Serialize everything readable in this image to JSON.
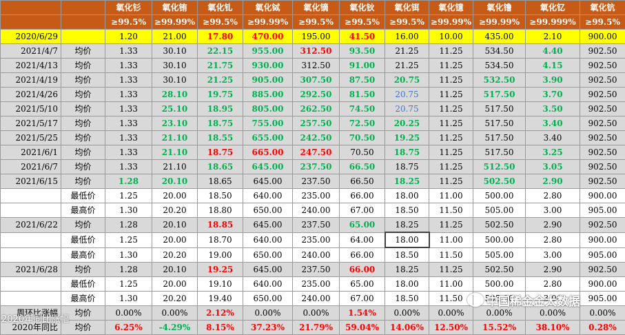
{
  "header": {
    "row1": [
      "",
      "",
      "氧化钐",
      "氧化铕",
      "氧化钆",
      "氧化铽",
      "氧化镝",
      "氧化钬",
      "氧化铒",
      "氧化镱",
      "氧化镥",
      "氧化钇",
      "氧化钪"
    ],
    "row2": [
      "",
      "",
      "≥99.5%",
      "≥99.99%",
      "≥99.5%",
      "≥99.99%",
      "≥99.5%",
      "≥99.5%",
      "≥99.5%",
      "≥99.99%",
      "≥99.99%",
      "≥99.999%",
      "≥99.5%"
    ]
  },
  "colors": {
    "header_bg": "#c65a17",
    "highlight": "#ffff00",
    "grey_row": "#d9d9d9",
    "up": "#ff0000",
    "down": "#00b050"
  },
  "rows": [
    {
      "style": "yellow",
      "cells": [
        {
          "t": "2020/6/29"
        },
        {
          "t": ""
        },
        {
          "t": "1.20"
        },
        {
          "t": "21.00"
        },
        {
          "t": "17.80",
          "c": "r"
        },
        {
          "t": "470.00",
          "c": "r"
        },
        {
          "t": "195.00"
        },
        {
          "t": "41.50",
          "c": "r"
        },
        {
          "t": "16.00"
        },
        {
          "t": "10.00"
        },
        {
          "t": "435.00"
        },
        {
          "t": "2.10"
        },
        {
          "t": "900.00"
        }
      ]
    },
    {
      "style": "grey",
      "cells": [
        {
          "t": "2021/4/7"
        },
        {
          "t": "均价"
        },
        {
          "t": "1.33"
        },
        {
          "t": "30.10"
        },
        {
          "t": "22.15",
          "c": "g"
        },
        {
          "t": "955.00",
          "c": "g"
        },
        {
          "t": "312.50",
          "c": "r"
        },
        {
          "t": "93.50",
          "c": "g"
        },
        {
          "t": "21.25"
        },
        {
          "t": "11.25"
        },
        {
          "t": "534.50"
        },
        {
          "t": "4.40",
          "c": "g"
        },
        {
          "t": "902.50"
        }
      ]
    },
    {
      "style": "grey",
      "cells": [
        {
          "t": "2021/4/13"
        },
        {
          "t": "均价"
        },
        {
          "t": "1.33"
        },
        {
          "t": "30.10"
        },
        {
          "t": "21.75",
          "c": "g"
        },
        {
          "t": "930.00",
          "c": "g"
        },
        {
          "t": "312.50"
        },
        {
          "t": "91.00",
          "c": "g"
        },
        {
          "t": "21.25"
        },
        {
          "t": "11.25"
        },
        {
          "t": "534.50"
        },
        {
          "t": "4.15",
          "c": "g"
        },
        {
          "t": "902.50"
        }
      ]
    },
    {
      "style": "grey",
      "cells": [
        {
          "t": "2021/4/19"
        },
        {
          "t": "均价"
        },
        {
          "t": "1.33"
        },
        {
          "t": "30.10"
        },
        {
          "t": "21.25",
          "c": "g"
        },
        {
          "t": "905.00",
          "c": "g"
        },
        {
          "t": "307.50",
          "c": "g"
        },
        {
          "t": "87.50",
          "c": "g"
        },
        {
          "t": "20.75",
          "c": "g"
        },
        {
          "t": "11.25"
        },
        {
          "t": "532.50",
          "c": "g"
        },
        {
          "t": "3.90",
          "c": "g"
        },
        {
          "t": "902.50"
        }
      ]
    },
    {
      "style": "grey",
      "cells": [
        {
          "t": "2021/4/26"
        },
        {
          "t": "均价"
        },
        {
          "t": "1.33"
        },
        {
          "t": "28.10",
          "c": "g"
        },
        {
          "t": "19.75",
          "c": "g"
        },
        {
          "t": "885.00",
          "c": "g"
        },
        {
          "t": "292.50",
          "c": "g"
        },
        {
          "t": "81.50",
          "c": "g"
        },
        {
          "t": "20.75",
          "c": "b"
        },
        {
          "t": "11.25"
        },
        {
          "t": "517.50",
          "c": "g"
        },
        {
          "t": "3.70",
          "c": "g"
        },
        {
          "t": "902.50"
        }
      ]
    },
    {
      "style": "grey",
      "cells": [
        {
          "t": "2021/5/10"
        },
        {
          "t": "均价"
        },
        {
          "t": "1.33"
        },
        {
          "t": "25.10",
          "c": "g"
        },
        {
          "t": "18.95",
          "c": "g"
        },
        {
          "t": "805.00",
          "c": "g"
        },
        {
          "t": "262.50",
          "c": "g"
        },
        {
          "t": "74.50",
          "c": "g"
        },
        {
          "t": "20.75",
          "c": "b"
        },
        {
          "t": "11.25"
        },
        {
          "t": "517.50"
        },
        {
          "t": "3.50",
          "c": "g"
        },
        {
          "t": "902.50"
        }
      ]
    },
    {
      "style": "grey",
      "cells": [
        {
          "t": "2021/5/17"
        },
        {
          "t": "均价"
        },
        {
          "t": "1.33"
        },
        {
          "t": "23.10",
          "c": "g"
        },
        {
          "t": "18.75",
          "c": "g"
        },
        {
          "t": "755.00",
          "c": "g"
        },
        {
          "t": "257.50",
          "c": "g"
        },
        {
          "t": "72.50",
          "c": "g"
        },
        {
          "t": "20.25",
          "c": "g"
        },
        {
          "t": "11.25"
        },
        {
          "t": "517.50"
        },
        {
          "t": "3.40",
          "c": "g"
        },
        {
          "t": "902.50"
        }
      ]
    },
    {
      "style": "grey",
      "cells": [
        {
          "t": "2021/5/25"
        },
        {
          "t": "均价"
        },
        {
          "t": "1.33"
        },
        {
          "t": "21.10",
          "c": "g"
        },
        {
          "t": "18.55",
          "c": "g"
        },
        {
          "t": "655.00",
          "c": "g"
        },
        {
          "t": "242.50",
          "c": "g"
        },
        {
          "t": "70.50",
          "c": "g"
        },
        {
          "t": "19.25",
          "c": "g"
        },
        {
          "t": "11.25"
        },
        {
          "t": "517.50"
        },
        {
          "t": "3.40"
        },
        {
          "t": "902.50"
        }
      ]
    },
    {
      "style": "grey",
      "cells": [
        {
          "t": "2021/6/1"
        },
        {
          "t": "均价"
        },
        {
          "t": "1.33"
        },
        {
          "t": "21.10",
          "c": "g"
        },
        {
          "t": "18.75",
          "c": "r"
        },
        {
          "t": "665.00",
          "c": "r"
        },
        {
          "t": "247.50",
          "c": "r"
        },
        {
          "t": "70.50"
        },
        {
          "t": "18.75",
          "c": "g"
        },
        {
          "t": "11.25"
        },
        {
          "t": "517.50"
        },
        {
          "t": "3.25",
          "c": "g"
        },
        {
          "t": "902.50"
        }
      ]
    },
    {
      "style": "grey",
      "cells": [
        {
          "t": "2021/6/7"
        },
        {
          "t": "均价"
        },
        {
          "t": "1.33"
        },
        {
          "t": "21.10"
        },
        {
          "t": "18.65",
          "c": "g"
        },
        {
          "t": "645.00",
          "c": "g"
        },
        {
          "t": "237.50",
          "c": "g"
        },
        {
          "t": "66.50",
          "c": "g"
        },
        {
          "t": "18.75"
        },
        {
          "t": "11.25"
        },
        {
          "t": "512.50",
          "c": "g"
        },
        {
          "t": "3.05",
          "c": "g"
        },
        {
          "t": "902.50"
        }
      ]
    },
    {
      "style": "grey",
      "cells": [
        {
          "t": "2021/6/15"
        },
        {
          "t": "均价"
        },
        {
          "t": "1.28",
          "c": "g"
        },
        {
          "t": "20.10",
          "c": "g"
        },
        {
          "t": "18.65"
        },
        {
          "t": "645.00"
        },
        {
          "t": "237.50"
        },
        {
          "t": "66.50"
        },
        {
          "t": "18.25",
          "c": "g"
        },
        {
          "t": "11.25"
        },
        {
          "t": "502.50",
          "c": "g"
        },
        {
          "t": "2.90",
          "c": "g"
        },
        {
          "t": "902.50"
        }
      ]
    },
    {
      "style": "white",
      "cells": [
        {
          "t": ""
        },
        {
          "t": "最低价"
        },
        {
          "t": "1.25"
        },
        {
          "t": "20.00"
        },
        {
          "t": "18.50"
        },
        {
          "t": "640.00"
        },
        {
          "t": "235.00"
        },
        {
          "t": "66.00"
        },
        {
          "t": "18.00"
        },
        {
          "t": "11.00"
        },
        {
          "t": "500.00"
        },
        {
          "t": "2.80"
        },
        {
          "t": "900.00"
        }
      ]
    },
    {
      "style": "white",
      "cells": [
        {
          "t": ""
        },
        {
          "t": "最高价"
        },
        {
          "t": "1.30"
        },
        {
          "t": "20.20"
        },
        {
          "t": "18.80"
        },
        {
          "t": "650.00"
        },
        {
          "t": "240.00"
        },
        {
          "t": "67.00"
        },
        {
          "t": "18.50"
        },
        {
          "t": "11.50"
        },
        {
          "t": "505.00"
        },
        {
          "t": "3.00"
        },
        {
          "t": "905.00"
        }
      ]
    },
    {
      "style": "grey",
      "cells": [
        {
          "t": "2021/6/22"
        },
        {
          "t": "均价"
        },
        {
          "t": "1.28"
        },
        {
          "t": "20.10"
        },
        {
          "t": "18.85",
          "c": "r"
        },
        {
          "t": "645.00"
        },
        {
          "t": "237.50"
        },
        {
          "t": "65.00",
          "c": "g"
        },
        {
          "t": "18.25"
        },
        {
          "t": "11.25"
        },
        {
          "t": "502.50"
        },
        {
          "t": "2.90"
        },
        {
          "t": "902.50"
        }
      ]
    },
    {
      "style": "white",
      "cells": [
        {
          "t": ""
        },
        {
          "t": "最低价"
        },
        {
          "t": "1.25"
        },
        {
          "t": "20.00"
        },
        {
          "t": "18.70"
        },
        {
          "t": "640.00"
        },
        {
          "t": "235.00"
        },
        {
          "t": "64.00"
        },
        {
          "t": "18.00",
          "sel": true
        },
        {
          "t": "11.00"
        },
        {
          "t": "500.00"
        },
        {
          "t": "2.80"
        },
        {
          "t": "900.00"
        }
      ]
    },
    {
      "style": "white",
      "cells": [
        {
          "t": ""
        },
        {
          "t": "最高价"
        },
        {
          "t": "1.30"
        },
        {
          "t": "20.20"
        },
        {
          "t": "19.00"
        },
        {
          "t": "650.00"
        },
        {
          "t": "240.00"
        },
        {
          "t": "66.00"
        },
        {
          "t": "18.50"
        },
        {
          "t": "11.50"
        },
        {
          "t": "505.00"
        },
        {
          "t": "3.00"
        },
        {
          "t": "905.00"
        }
      ]
    },
    {
      "style": "grey",
      "cells": [
        {
          "t": "2021/6/28"
        },
        {
          "t": "均价"
        },
        {
          "t": "1.28"
        },
        {
          "t": "20.10"
        },
        {
          "t": "19.25",
          "c": "r"
        },
        {
          "t": "645.00"
        },
        {
          "t": "237.50"
        },
        {
          "t": "66.00",
          "c": "r"
        },
        {
          "t": "18.25"
        },
        {
          "t": "11.25"
        },
        {
          "t": "502.50"
        },
        {
          "t": "2.90"
        },
        {
          "t": "902.50"
        }
      ]
    },
    {
      "style": "white",
      "cells": [
        {
          "t": ""
        },
        {
          "t": "最低价"
        },
        {
          "t": "1.25"
        },
        {
          "t": "20.00"
        },
        {
          "t": "19.10"
        },
        {
          "t": "640.00"
        },
        {
          "t": "235.00"
        },
        {
          "t": "65.00"
        },
        {
          "t": "18.00"
        },
        {
          "t": "11.00"
        },
        {
          "t": "500.00"
        },
        {
          "t": "2.80"
        },
        {
          "t": "900.00"
        }
      ]
    },
    {
      "style": "white",
      "cells": [
        {
          "t": ""
        },
        {
          "t": "最高价"
        },
        {
          "t": "1.30"
        },
        {
          "t": "20.20"
        },
        {
          "t": "19.40"
        },
        {
          "t": "650.00"
        },
        {
          "t": "240.00"
        },
        {
          "t": "67.00"
        },
        {
          "t": "18.50"
        },
        {
          "t": "11.50"
        },
        {
          "t": "505.00"
        },
        {
          "t": "3.00"
        },
        {
          "t": "905.00"
        }
      ]
    },
    {
      "style": "footer",
      "cells": [
        {
          "t": "周环比涨幅"
        },
        {
          "t": "均价"
        },
        {
          "t": "0.00%"
        },
        {
          "t": "0.00%"
        },
        {
          "t": "2.12%",
          "c": "r"
        },
        {
          "t": "0.00%"
        },
        {
          "t": "0.00%"
        },
        {
          "t": "1.54%",
          "c": "r"
        },
        {
          "t": "0.00%"
        },
        {
          "t": "0.00%"
        },
        {
          "t": "0.00%"
        },
        {
          "t": "0.00%"
        },
        {
          "t": "0.00%"
        }
      ]
    },
    {
      "style": "footer",
      "cells": [
        {
          "t": "2020年同比"
        },
        {
          "t": "均价"
        },
        {
          "t": "6.25%",
          "c": "r"
        },
        {
          "t": "-4.29%",
          "c": "g"
        },
        {
          "t": "8.15%",
          "c": "r"
        },
        {
          "t": "37.23%",
          "c": "r"
        },
        {
          "t": "21.79%",
          "c": "r"
        },
        {
          "t": "59.04%",
          "c": "r"
        },
        {
          "t": "14.06%",
          "c": "r"
        },
        {
          "t": "12.50%",
          "c": "r"
        },
        {
          "t": "15.52%",
          "c": "r"
        },
        {
          "t": "38.10%",
          "c": "r"
        },
        {
          "t": "0.28%",
          "c": "r"
        }
      ]
    }
  ],
  "watermark": {
    "text": "中国稀金金大数据",
    "icon": "wechat-icon"
  },
  "watermark2": {
    "text": "2020年同比涨幅"
  }
}
